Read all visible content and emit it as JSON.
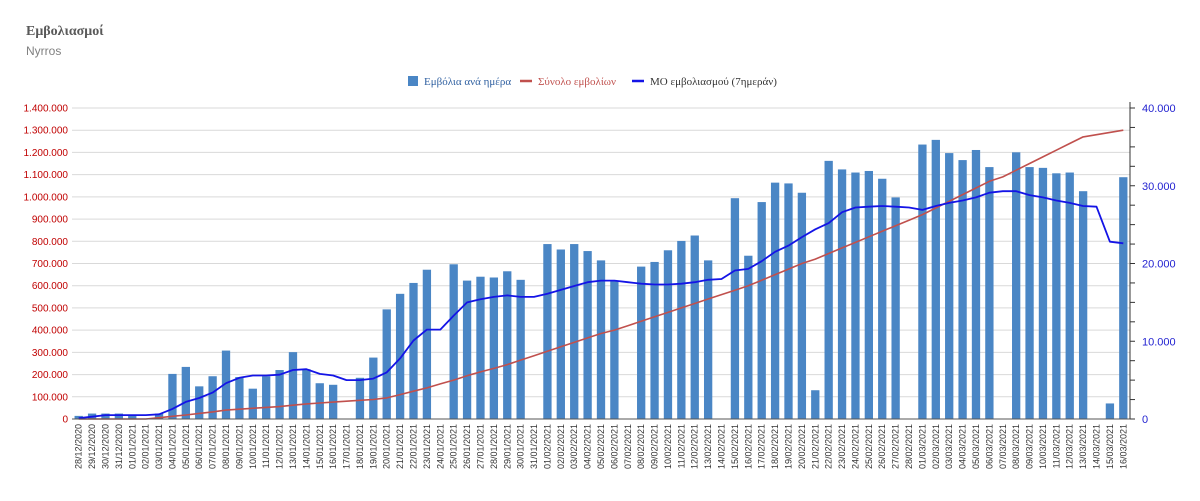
{
  "header": {
    "title": "Εμβολιασμοί",
    "subtitle": "Nyrros"
  },
  "chart_data": {
    "type": "bar",
    "title": "Εμβολιασμοί",
    "subtitle": "Nyrros",
    "legend_position": "top-center",
    "categories": [
      "28/12/2020",
      "29/12/2020",
      "30/12/2020",
      "31/12/2020",
      "01/01/2021",
      "02/01/2021",
      "03/01/2021",
      "04/01/2021",
      "05/01/2021",
      "06/01/2021",
      "07/01/2021",
      "08/01/2021",
      "09/01/2021",
      "10/01/2021",
      "11/01/2021",
      "12/01/2021",
      "13/01/2021",
      "14/01/2021",
      "15/01/2021",
      "16/01/2021",
      "17/01/2021",
      "18/01/2021",
      "19/01/2021",
      "20/01/2021",
      "21/01/2021",
      "22/01/2021",
      "23/01/2021",
      "24/01/2021",
      "25/01/2021",
      "26/01/2021",
      "27/01/2021",
      "28/01/2021",
      "29/01/2021",
      "30/01/2021",
      "31/01/2021",
      "01/02/2021",
      "02/02/2021",
      "03/02/2021",
      "04/02/2021",
      "05/02/2021",
      "06/02/2021",
      "07/02/2021",
      "08/02/2021",
      "09/02/2021",
      "10/02/2021",
      "11/02/2021",
      "12/02/2021",
      "13/02/2021",
      "14/02/2021",
      "15/02/2021",
      "16/02/2021",
      "17/02/2021",
      "18/02/2021",
      "19/02/2021",
      "20/02/2021",
      "21/02/2021",
      "22/02/2021",
      "23/02/2021",
      "24/02/2021",
      "25/02/2021",
      "26/02/2021",
      "27/02/2021",
      "28/02/2021",
      "01/03/2021",
      "02/03/2021",
      "03/03/2021",
      "04/03/2021",
      "05/03/2021",
      "06/03/2021",
      "07/03/2021",
      "08/03/2021",
      "09/03/2021",
      "10/03/2021",
      "11/03/2021",
      "12/03/2021",
      "13/03/2021",
      "14/03/2021",
      "15/03/2021",
      "16/03/2021"
    ],
    "x_tick_labels": [
      "28/12/2020",
      "29/12/2020",
      "30/12/2020",
      "31/12/2020",
      "01/01/2021",
      "02/01/2021",
      "03/01/2021",
      "04/01/2021",
      "05/01/2021",
      "06/01/2021",
      "07/01/2021",
      "08/01/2021",
      "09/01/2021",
      "10/01/2021",
      "11/01/2021",
      "12/01/2021",
      "13/01/2021",
      "14/01/2021",
      "15/01/2021",
      "16/01/2021",
      "17/01/2021",
      "18/01/2021",
      "19/01/2021",
      "20/01/2021",
      "21/01/2021",
      "22/01/2021",
      "23/01/2021",
      "24/01/2021",
      "25/01/2021",
      "26/01/2021",
      "27/01/2021",
      "28/01/2021",
      "29/01/2021",
      "30/01/2021",
      "31/01/2021",
      "01/02/2021",
      "02/02/2021",
      "03/02/2021",
      "04/02/2021",
      "05/02/2021",
      "06/02/2021",
      "07/02/2021",
      "08/02/2021",
      "09/02/2021",
      "10/02/2021",
      "11/02/2021",
      "12/02/2021",
      "13/02/2021",
      "14/02/2021",
      "15/02/2021",
      "16/02/2021",
      "17/02/2021",
      "18/02/2021",
      "19/02/2021",
      "20/02/2021",
      "21/02/2021",
      "22/02/2021",
      "23/02/2021",
      "24/02/2021",
      "25/02/2021",
      "26/02/2021",
      "27/02/2021",
      "28/02/2021",
      "01/03/2021",
      "02/03/2021",
      "03/03/2021",
      "04/03/2021",
      "05/03/2021",
      "06/03/2021",
      "07/03/2021",
      "08/03/2021",
      "09/03/2021",
      "10/03/2021",
      "11/03/2021",
      "12/03/2021",
      "13/03/2021",
      "14/03/2021",
      "15/03/2021",
      "16/03/2021"
    ],
    "left_axis": {
      "ylim": [
        0,
        1400000
      ],
      "ticks": [
        "0",
        "100.000",
        "200.000",
        "300.000",
        "400.000",
        "500.000",
        "600.000",
        "700.000",
        "800.000",
        "900.000",
        "1.000.000",
        "1.100.000",
        "1.200.000",
        "1.300.000",
        "1.400.000"
      ],
      "color": "#c00000"
    },
    "right_axis": {
      "ylim": [
        0,
        40000
      ],
      "ticks": [
        "0",
        "10.000",
        "20.000",
        "30.000",
        "40.000"
      ],
      "color": "#1f1fd0"
    },
    "series": [
      {
        "name": "Εμβόλια ανά ημέρα",
        "type": "bar",
        "axis": "right",
        "color": "#4a86c5",
        "legend_text_color": "#2e5fa0",
        "values": [
          400,
          700,
          700,
          700,
          400,
          0,
          700,
          5800,
          6700,
          4200,
          5500,
          8800,
          5400,
          3900,
          5500,
          6300,
          8600,
          6400,
          4600,
          4400,
          0,
          5300,
          7900,
          14100,
          16100,
          17500,
          19200,
          0,
          19900,
          17800,
          18300,
          18200,
          19000,
          17900,
          0,
          22500,
          21800,
          22500,
          21600,
          20400,
          17800,
          0,
          19600,
          20200,
          21700,
          22900,
          23600,
          20400,
          0,
          28400,
          21000,
          27900,
          30400,
          30300,
          29100,
          3700,
          33200,
          32100,
          31700,
          31900,
          30900,
          28500,
          0,
          35300,
          35900,
          34200,
          33300,
          34600,
          32400,
          0,
          34300,
          32400,
          32300,
          31600,
          31700,
          29300,
          0,
          2000,
          31100
        ]
      },
      {
        "name": "Σύνολο εμβολίων",
        "type": "line",
        "axis": "left",
        "color": "#c0504d",
        "legend_text_color": "#c0504d",
        "values": [
          0,
          0,
          0,
          0,
          0,
          0,
          6000,
          12000,
          18000,
          25000,
          32000,
          40000,
          44000,
          48000,
          52000,
          56000,
          62000,
          68000,
          72000,
          76000,
          80000,
          84000,
          88000,
          95000,
          110000,
          125000,
          140000,
          158000,
          175000,
          195000,
          212000,
          228000,
          245000,
          265000,
          285000,
          305000,
          325000,
          345000,
          365000,
          385000,
          400000,
          420000,
          440000,
          460000,
          480000,
          500000,
          520000,
          540000,
          560000,
          580000,
          600000,
          625000,
          650000,
          675000,
          700000,
          720000,
          745000,
          770000,
          795000,
          820000,
          845000,
          870000,
          895000,
          920000,
          950000,
          980000,
          1010000,
          1040000,
          1070000,
          1090000,
          1120000,
          1150000,
          1180000,
          1210000,
          1240000,
          1270000,
          1280000,
          1290000,
          1300000
        ]
      },
      {
        "name": "ΜΟ εμβολιασμού (7ημεράν)",
        "type": "line",
        "axis": "right",
        "color": "#1414e6",
        "legend_text_color": "#333333",
        "values": [
          100,
          300,
          500,
          500,
          500,
          500,
          600,
          1300,
          2200,
          2700,
          3400,
          4600,
          5300,
          5600,
          5600,
          5700,
          6300,
          6400,
          5800,
          5600,
          5000,
          5000,
          5200,
          6000,
          7800,
          10100,
          11500,
          11500,
          13300,
          15000,
          15400,
          15700,
          15900,
          15700,
          15700,
          16100,
          16600,
          17100,
          17600,
          17800,
          17800,
          17600,
          17400,
          17300,
          17300,
          17400,
          17600,
          17900,
          18000,
          19100,
          19300,
          20300,
          21500,
          22300,
          23400,
          24400,
          25200,
          26600,
          27200,
          27300,
          27400,
          27300,
          27200,
          26900,
          27400,
          27800,
          28100,
          28500,
          29100,
          29300,
          29300,
          28800,
          28500,
          28100,
          27800,
          27400,
          27300,
          22800,
          22600
        ]
      }
    ]
  }
}
